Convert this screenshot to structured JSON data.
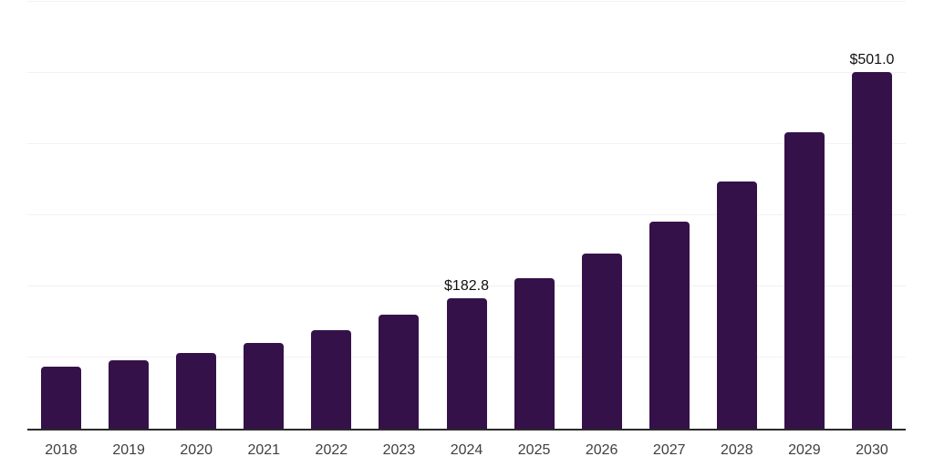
{
  "chart_data": {
    "type": "bar",
    "title": "",
    "xlabel": "",
    "ylabel": "",
    "categories": [
      "2018",
      "2019",
      "2020",
      "2021",
      "2022",
      "2023",
      "2024",
      "2025",
      "2026",
      "2027",
      "2028",
      "2029",
      "2030"
    ],
    "values": [
      86.9,
      96.0,
      106.6,
      120.8,
      138.3,
      159.7,
      182.8,
      212.0,
      246.3,
      291.0,
      347.0,
      417.0,
      501.0
    ],
    "value_labels": {
      "2024": "$182.8",
      "2030": "$501.0"
    },
    "ylim": [
      0,
      600
    ],
    "gridline_step": 100,
    "grid": "horizontal-only",
    "y_tick_labels_visible": false,
    "legend_position": "none",
    "colors": {
      "bar": "#35114a",
      "axis_line": "#2b2b2b",
      "gridline": "#f2f2f2",
      "x_tick_label": "#404040",
      "value_label": "#111111",
      "background": "#ffffff"
    }
  }
}
